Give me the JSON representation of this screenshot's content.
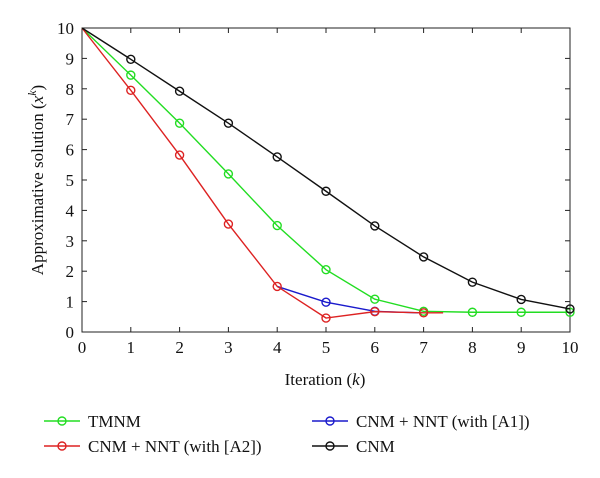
{
  "chart_data": {
    "type": "line",
    "xlabel_prefix": "Iteration (",
    "xlabel_var": "k",
    "xlabel_suffix": ")",
    "ylabel_prefix": "Approximative solution (",
    "ylabel_var": "x",
    "ylabel_sup": "k",
    "ylabel_suffix": ")",
    "xlim": [
      0,
      10
    ],
    "ylim": [
      0,
      10
    ],
    "xticks": [
      0,
      1,
      2,
      3,
      4,
      5,
      6,
      7,
      8,
      9,
      10
    ],
    "yticks": [
      0,
      1,
      2,
      3,
      4,
      5,
      6,
      7,
      8,
      9,
      10
    ],
    "grid": false,
    "legend_position": "bottom",
    "series": [
      {
        "name": "TMNM",
        "color": "#22dd22",
        "x": [
          0,
          1,
          2,
          3,
          4,
          5,
          6,
          7,
          8,
          9,
          10
        ],
        "y": [
          10,
          8.45,
          6.87,
          5.2,
          3.5,
          2.05,
          1.08,
          0.68,
          0.65,
          0.65,
          0.65
        ],
        "markers": [
          1,
          2,
          3,
          4,
          5,
          6,
          7,
          8,
          9,
          10
        ]
      },
      {
        "name": "CNM + NNT (with [A1])",
        "color": "#1a1acc",
        "x": [
          4,
          5,
          6,
          6.9
        ],
        "y": [
          1.5,
          0.98,
          0.68,
          0.63
        ],
        "markers": [
          1,
          2
        ]
      },
      {
        "name": "CNM + NNT (with [A2])",
        "color": "#dd2222",
        "x": [
          0,
          1,
          2,
          3,
          4,
          5,
          6,
          7,
          7.4
        ],
        "y": [
          10,
          7.95,
          5.82,
          3.55,
          1.5,
          0.46,
          0.67,
          0.63,
          0.63
        ],
        "markers": [
          1,
          2,
          3,
          4,
          5,
          6,
          7
        ]
      },
      {
        "name": "CNM",
        "color": "#111111",
        "x": [
          0,
          1,
          2,
          3,
          4,
          5,
          6,
          7,
          8,
          9,
          10
        ],
        "y": [
          10,
          8.97,
          7.92,
          6.87,
          5.76,
          4.63,
          3.49,
          2.47,
          1.64,
          1.07,
          0.76
        ],
        "markers": [
          1,
          2,
          3,
          4,
          5,
          6,
          7,
          8,
          9,
          10
        ]
      }
    ],
    "legend_order": [
      0,
      1,
      2,
      3
    ]
  }
}
